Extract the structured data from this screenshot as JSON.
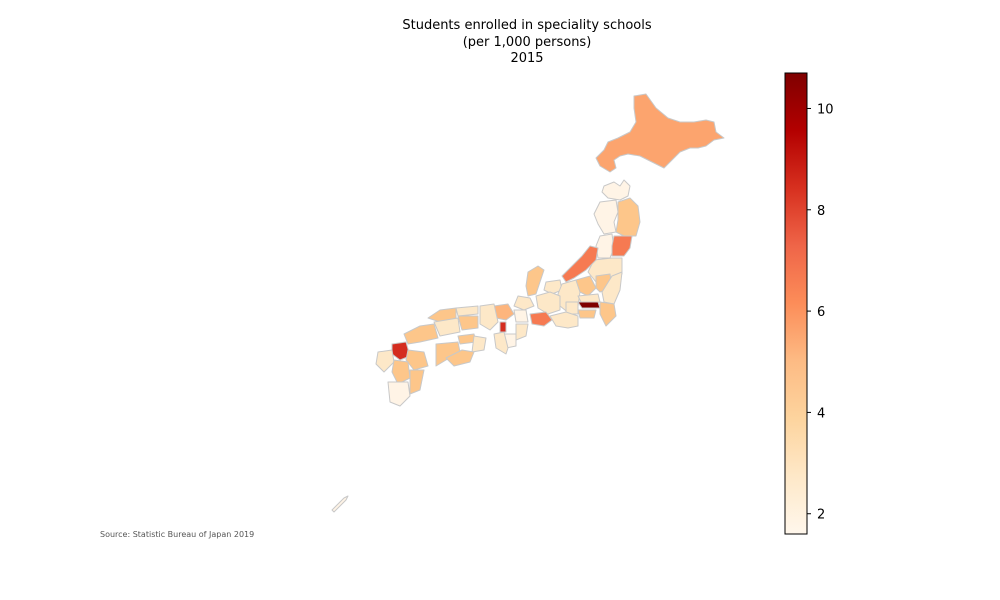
{
  "title": {
    "line1": "Students enrolled in speciality schools",
    "line2": "(per 1,000 persons)",
    "line3": "2015"
  },
  "source": "Source: Statistic Bureau of Japan 2019",
  "colorbar": {
    "colormap": "OrRd",
    "min": 1.6,
    "max": 10.7,
    "ticks": [
      "2",
      "4",
      "6",
      "8",
      "10"
    ]
  },
  "colors": {
    "border": "#c8c8c8",
    "v2": "#fff4e6",
    "v3": "#fde8c8",
    "v4": "#fdd49e",
    "v4_5": "#fdc68a",
    "v5": "#fdb57d",
    "v6": "#fca46e",
    "v7": "#f67a52",
    "v8": "#ef5b45",
    "v9": "#d42c1f",
    "v10": "#7f0000"
  }
}
